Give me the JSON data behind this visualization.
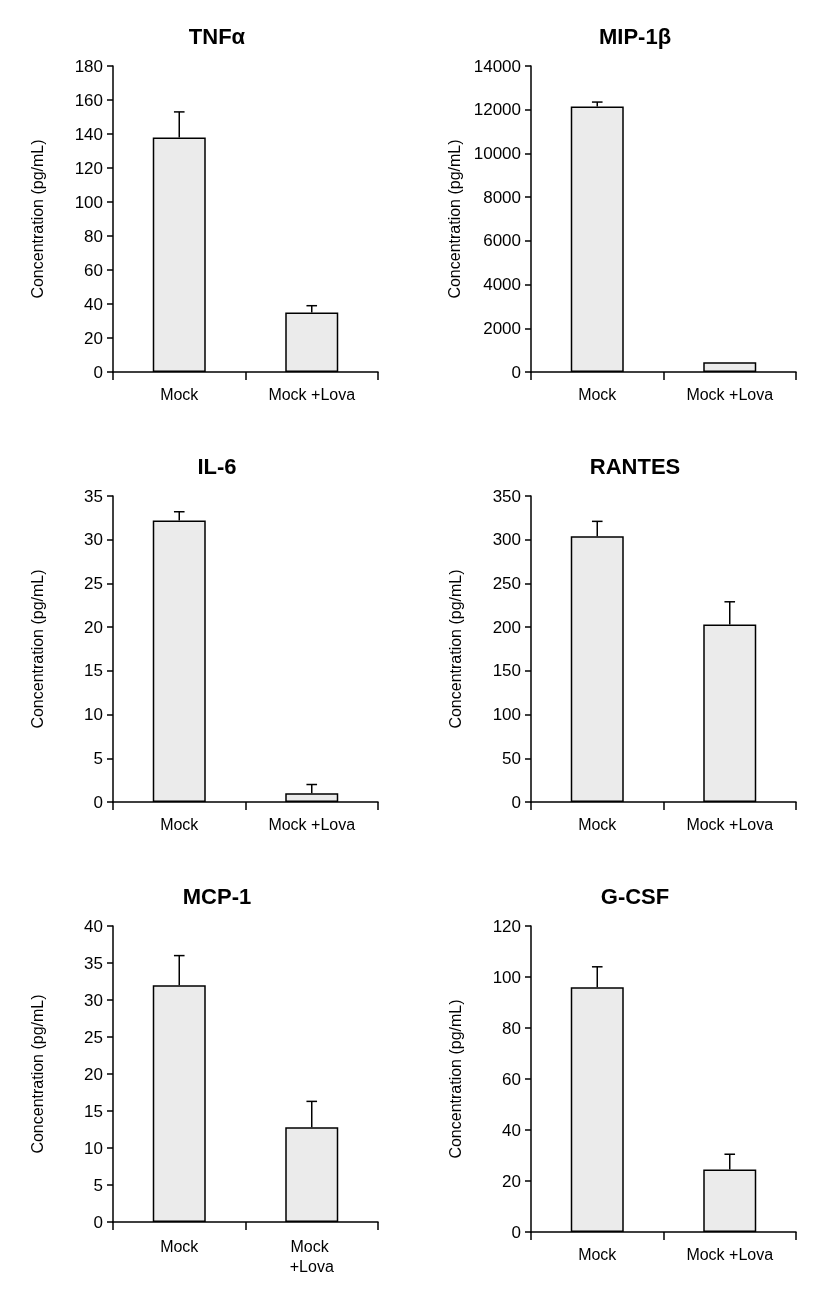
{
  "chart_data": [
    {
      "type": "bar",
      "title": "TNFα",
      "ylabel": "Concentration (pg/mL)",
      "categories": [
        "Mock",
        "Mock +Lova"
      ],
      "values": [
        138,
        35
      ],
      "errors": [
        [
          138,
          153
        ],
        [
          35,
          39
        ]
      ],
      "color": "#ebebeb",
      "ylim": [
        0,
        180
      ],
      "yticks": [
        0,
        20,
        40,
        60,
        80,
        100,
        120,
        140,
        160,
        180
      ],
      "grid": false
    },
    {
      "type": "bar",
      "title": "MIP-1β",
      "ylabel": "Concentration (pg/mL)",
      "categories": [
        "Mock",
        "Mock +Lova"
      ],
      "values": [
        12150,
        450
      ],
      "errors": [
        [
          12150,
          12350
        ],
        null
      ],
      "color": "#ebebeb",
      "ylim": [
        0,
        14000
      ],
      "yticks": [
        0,
        2000,
        4000,
        6000,
        8000,
        10000,
        12000,
        14000
      ],
      "grid": false
    },
    {
      "type": "bar",
      "title": "IL-6",
      "ylabel": "Concentration (pg/mL)",
      "categories": [
        "Mock",
        "Mock +Lova"
      ],
      "values": [
        32.2,
        1.0
      ],
      "errors": [
        [
          32.2,
          33.2
        ],
        [
          1.0,
          2.0
        ]
      ],
      "color": "#ebebeb",
      "ylim": [
        0,
        35
      ],
      "yticks": [
        0,
        5,
        10,
        15,
        20,
        25,
        30,
        35
      ],
      "grid": false
    },
    {
      "type": "bar",
      "title": "RANTES",
      "ylabel": "Concentration (pg/mL)",
      "categories": [
        "Mock",
        "Mock +Lova"
      ],
      "values": [
        304,
        203
      ],
      "errors": [
        [
          304,
          321
        ],
        [
          203,
          229
        ]
      ],
      "color": "#ebebeb",
      "ylim": [
        0,
        350
      ],
      "yticks": [
        0,
        50,
        100,
        150,
        200,
        250,
        300,
        350
      ],
      "grid": false
    },
    {
      "type": "bar",
      "title": "MCP-1",
      "ylabel": "Concentration (pg/mL)",
      "categories": [
        "Mock",
        "Mock +Lova"
      ],
      "values": [
        32,
        12.8
      ],
      "errors": [
        [
          32,
          36
        ],
        [
          12.8,
          16.3
        ]
      ],
      "color": "#ebebeb",
      "ylim": [
        0,
        40
      ],
      "yticks": [
        0,
        5,
        10,
        15,
        20,
        25,
        30,
        35,
        40
      ],
      "grid": false
    },
    {
      "type": "bar",
      "title": "G-CSF",
      "ylabel": "Concentration (pg/mL)",
      "categories": [
        "Mock",
        "Mock +Lova"
      ],
      "values": [
        96,
        24.5
      ],
      "errors": [
        [
          96,
          104
        ],
        [
          24.5,
          30.5
        ]
      ],
      "color": "#ebebeb",
      "ylim": [
        0,
        120
      ],
      "yticks": [
        0,
        20,
        40,
        60,
        80,
        100,
        120
      ],
      "grid": false
    }
  ]
}
